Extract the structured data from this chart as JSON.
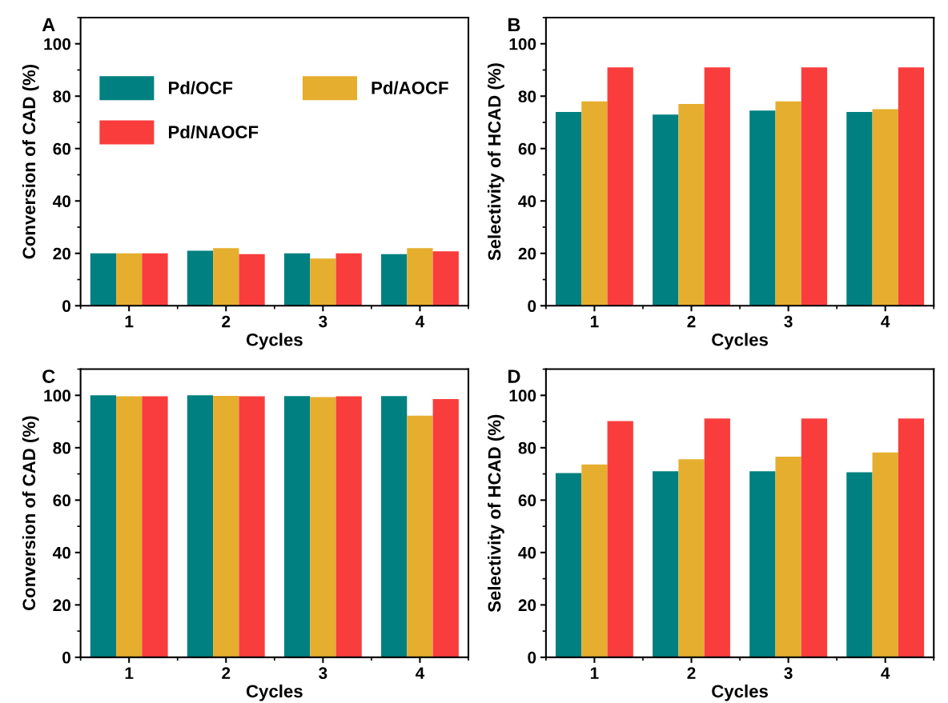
{
  "chart_data": [
    {
      "type": "bar",
      "title": "A",
      "xlabel": "Cycles",
      "ylabel": "Conversion of CAD (%)",
      "categories": [
        "1",
        "2",
        "3",
        "4"
      ],
      "ylim": [
        0,
        110
      ],
      "yticks": [
        0,
        20,
        40,
        60,
        80,
        100
      ],
      "legend": "top",
      "series": [
        {
          "name": "Pd/OCF",
          "color": "#008080",
          "values": [
            20,
            21,
            20,
            19.7
          ]
        },
        {
          "name": "Pd/AOCF",
          "color": "#e5ae2e",
          "values": [
            20,
            22,
            18,
            22
          ]
        },
        {
          "name": "Pd/NAOCF",
          "color": "#f93d3d",
          "values": [
            20,
            19.7,
            20,
            20.8
          ]
        }
      ]
    },
    {
      "type": "bar",
      "title": "B",
      "xlabel": "Cycles",
      "ylabel": "Selectivity of HCAD (%)",
      "categories": [
        "1",
        "2",
        "3",
        "4"
      ],
      "ylim": [
        0,
        110
      ],
      "yticks": [
        0,
        20,
        40,
        60,
        80,
        100
      ],
      "series": [
        {
          "color": "#008080",
          "values": [
            74,
            73,
            74.5,
            74
          ]
        },
        {
          "color": "#e5ae2e",
          "values": [
            78,
            77,
            78,
            75
          ]
        },
        {
          "color": "#f93d3d",
          "values": [
            91,
            91,
            91,
            91
          ]
        }
      ]
    },
    {
      "type": "bar",
      "title": "C",
      "xlabel": "Cycles",
      "ylabel": "Conversion of CAD (%)",
      "categories": [
        "1",
        "2",
        "3",
        "4"
      ],
      "ylim": [
        0,
        110
      ],
      "yticks": [
        0,
        20,
        40,
        60,
        80,
        100
      ],
      "series": [
        {
          "color": "#008080",
          "values": [
            100,
            100,
            99.7,
            99.7
          ]
        },
        {
          "color": "#e5ae2e",
          "values": [
            99.6,
            99.8,
            99.3,
            92.2
          ]
        },
        {
          "color": "#f93d3d",
          "values": [
            99.6,
            99.6,
            99.6,
            98.6
          ]
        }
      ]
    },
    {
      "type": "bar",
      "title": "D",
      "xlabel": "Cycles",
      "ylabel": "Selectivity of HCAD (%)",
      "categories": [
        "1",
        "2",
        "3",
        "4"
      ],
      "ylim": [
        0,
        110
      ],
      "yticks": [
        0,
        20,
        40,
        60,
        80,
        100
      ],
      "series": [
        {
          "color": "#008080",
          "values": [
            70.3,
            71,
            71,
            70.6
          ]
        },
        {
          "color": "#e5ae2e",
          "values": [
            73.6,
            75.6,
            76.6,
            78.2
          ]
        },
        {
          "color": "#f93d3d",
          "values": [
            90.2,
            91.2,
            91.2,
            91.2
          ]
        }
      ]
    }
  ]
}
